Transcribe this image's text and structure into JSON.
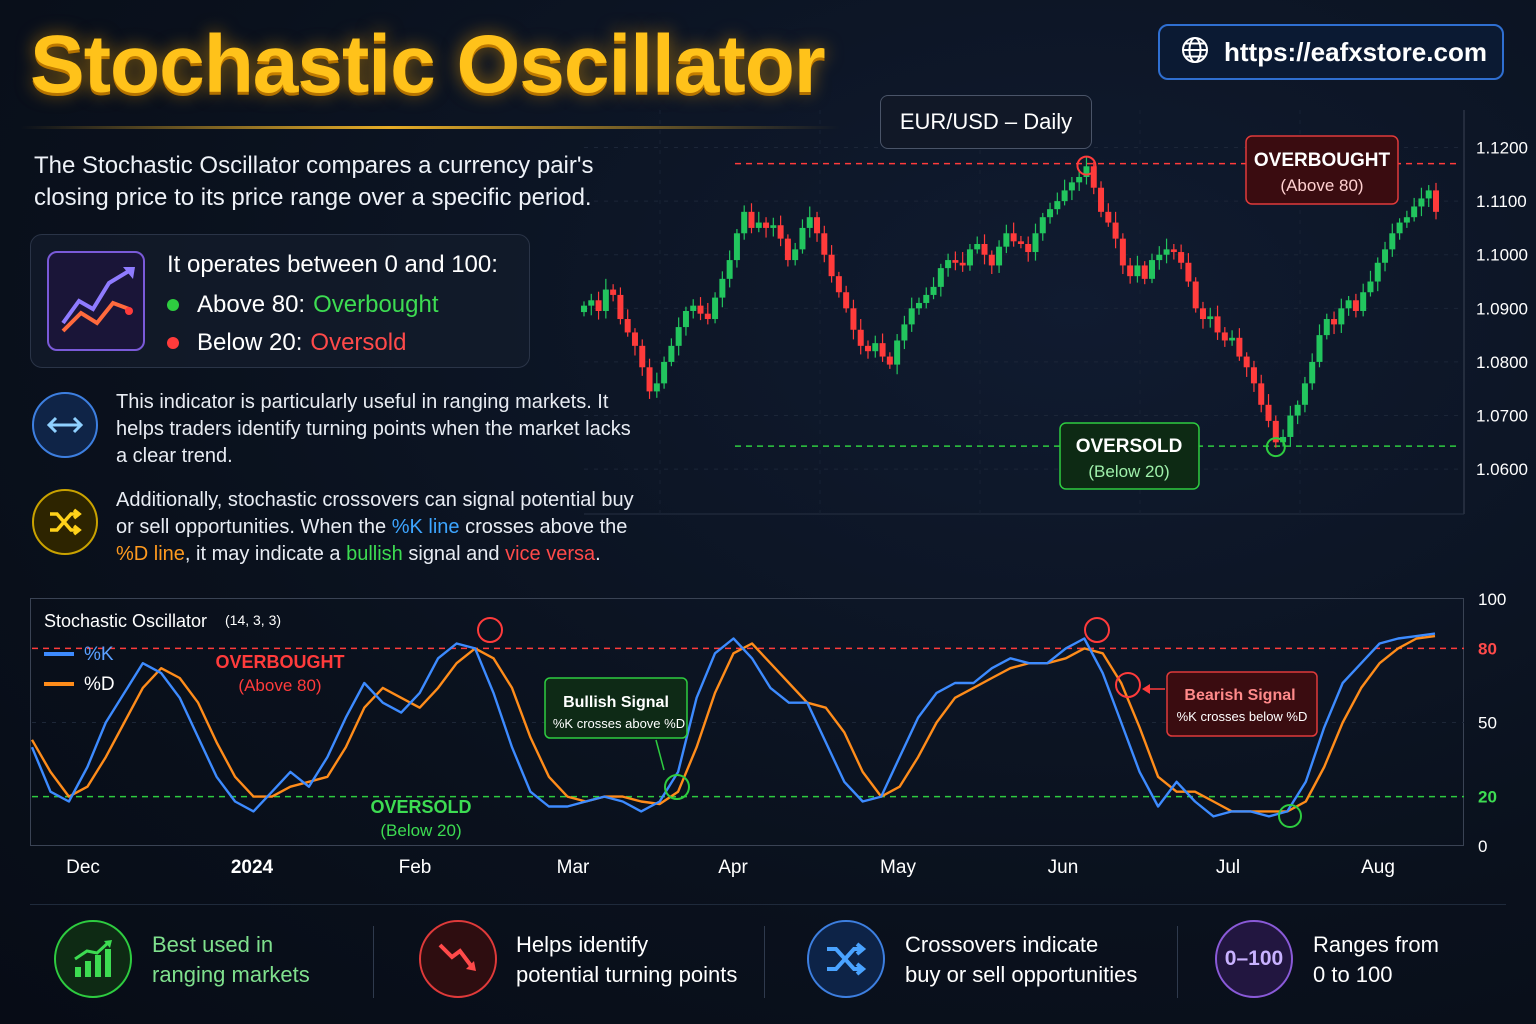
{
  "title": "Stochastic Oscillator",
  "url": "https://eafxstore.com",
  "intro": "The Stochastic Oscillator compares a currency pair's closing price to its price range over a specific period.",
  "range_box": {
    "title": "It operates between 0 and 100:",
    "above_label": "Above 80:",
    "above_value": "Overbought",
    "below_label": "Below 20:",
    "below_value": "Oversold"
  },
  "para1": "This indicator is particularly useful in ranging markets. It helps traders identify turning points when the market lacks a clear trend.",
  "para2": {
    "t1": "Additionally, stochastic crossovers can signal potential buy or sell opportunities. When the ",
    "k": "%K line",
    "t2": " crosses above the ",
    "d": "%D line",
    "t3": ", it may indicate a ",
    "bull": "bullish",
    "t4": " signal and ",
    "vice": "vice versa",
    "t5": "."
  },
  "colors": {
    "accent_gold": "#ffc21a",
    "green": "#2ecc40",
    "red": "#ff3b3b",
    "k_line": "#3d8bff",
    "d_line": "#ff8c1a"
  },
  "chart_data": [
    {
      "type": "candlestick",
      "title": "EUR/USD – Daily",
      "y_ticks": [
        "1.1200",
        "1.1100",
        "1.1000",
        "1.0900",
        "1.0800",
        "1.0700",
        "1.0600"
      ],
      "ylim": [
        1.052,
        1.127
      ],
      "levels": {
        "overbought": 1.117,
        "oversold": 1.0643
      },
      "annotations": [
        {
          "label": "OVERBOUGHT",
          "sub": "(Above 80)"
        },
        {
          "label": "OVERSOLD",
          "sub": "(Below 20)"
        }
      ],
      "closes": [
        1.0905,
        1.0915,
        1.0895,
        1.0935,
        1.0925,
        1.088,
        1.0855,
        1.083,
        1.079,
        1.0745,
        1.076,
        1.08,
        1.083,
        1.0865,
        1.0895,
        1.0905,
        1.089,
        1.088,
        1.092,
        1.0955,
        1.099,
        1.104,
        1.108,
        1.105,
        1.106,
        1.105,
        1.1055,
        1.103,
        1.099,
        1.101,
        1.105,
        1.107,
        1.104,
        1.1,
        1.096,
        1.093,
        1.09,
        1.086,
        1.083,
        1.082,
        1.0835,
        1.081,
        1.0795,
        1.084,
        1.087,
        1.09,
        1.091,
        1.0925,
        1.094,
        1.0975,
        1.099,
        1.0985,
        1.098,
        1.101,
        1.102,
        1.1,
        1.098,
        1.1015,
        1.104,
        1.1025,
        1.102,
        1.1005,
        1.104,
        1.107,
        1.1085,
        1.11,
        1.112,
        1.1135,
        1.1145,
        1.1165,
        1.1125,
        1.108,
        1.106,
        1.103,
        1.098,
        1.096,
        1.098,
        1.0955,
        1.099,
        1.1,
        1.101,
        1.1005,
        1.0985,
        1.095,
        1.09,
        1.088,
        1.0885,
        1.0855,
        1.084,
        1.0845,
        1.081,
        1.079,
        1.076,
        1.072,
        1.069,
        1.065,
        1.066,
        1.07,
        1.072,
        1.076,
        1.08,
        1.085,
        1.088,
        1.087,
        1.09,
        1.0915,
        1.0895,
        1.093,
        1.095,
        1.0985,
        1.101,
        1.104,
        1.106,
        1.107,
        1.109,
        1.1105,
        1.112,
        1.108
      ]
    },
    {
      "type": "line",
      "title": "Stochastic Oscillator",
      "params": "(14, 3, 3)",
      "y_ticks": [
        "100",
        "80",
        "50",
        "20",
        "0"
      ],
      "ylim": [
        0,
        100
      ],
      "levels": {
        "overbought": 80,
        "oversold": 20
      },
      "x_labels": [
        "Dec",
        "2024",
        "Feb",
        "Mar",
        "Apr",
        "May",
        "Jun",
        "Jul",
        "Aug"
      ],
      "zone_labels": [
        {
          "label": "OVERBOUGHT",
          "sub": "(Above 80)"
        },
        {
          "label": "OVERSOLD",
          "sub": "(Below 20)"
        }
      ],
      "signals": [
        {
          "title": "Bullish Signal",
          "text": "%K crosses above %D"
        },
        {
          "title": "Bearish Signal",
          "text": "%K crosses below %D"
        }
      ],
      "series": [
        {
          "name": "%K",
          "values": [
            40,
            22,
            18,
            32,
            50,
            62,
            74,
            70,
            60,
            44,
            28,
            18,
            14,
            22,
            30,
            24,
            36,
            52,
            66,
            58,
            54,
            62,
            76,
            82,
            80,
            62,
            40,
            22,
            16,
            16,
            18,
            20,
            18,
            14,
            18,
            30,
            60,
            78,
            84,
            76,
            64,
            58,
            58,
            42,
            26,
            18,
            20,
            36,
            52,
            62,
            66,
            66,
            72,
            76,
            74,
            74,
            80,
            84,
            70,
            50,
            30,
            16,
            26,
            18,
            12,
            14,
            14,
            12,
            14,
            26,
            48,
            66,
            74,
            82,
            84,
            85,
            86
          ]
        },
        {
          "name": "%D",
          "values": [
            43,
            30,
            20,
            24,
            36,
            50,
            64,
            72,
            68,
            58,
            42,
            28,
            20,
            20,
            24,
            26,
            28,
            40,
            56,
            64,
            60,
            56,
            64,
            74,
            80,
            76,
            64,
            44,
            28,
            20,
            18,
            20,
            20,
            18,
            17,
            22,
            40,
            62,
            78,
            82,
            74,
            66,
            58,
            56,
            46,
            30,
            20,
            24,
            36,
            50,
            60,
            64,
            68,
            72,
            74,
            74,
            76,
            80,
            78,
            66,
            48,
            28,
            22,
            22,
            18,
            14,
            14,
            14,
            14,
            18,
            32,
            50,
            64,
            74,
            80,
            84,
            85
          ]
        }
      ]
    }
  ],
  "features": [
    {
      "l1": "Best used in",
      "l2": "ranging markets"
    },
    {
      "l1": "Helps identify",
      "l2": "potential turning points"
    },
    {
      "l1": "Crossovers indicate",
      "l2": "buy or sell opportunities"
    },
    {
      "l1": "Ranges from",
      "l2": "0 to 100",
      "badge": "0–100"
    }
  ]
}
